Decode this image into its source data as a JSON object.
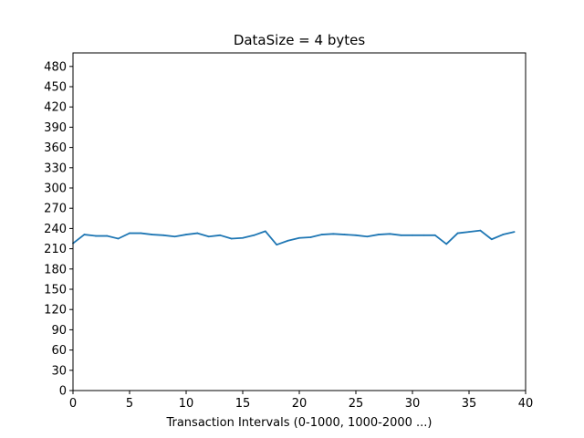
{
  "chart_data": {
    "type": "line",
    "title": "DataSize = 4 bytes",
    "xlabel": "Transaction Intervals (0-1000, 1000-2000 ...)",
    "ylabel": "",
    "xlim": [
      0,
      40
    ],
    "ylim": [
      0,
      500
    ],
    "grid": false,
    "xticks": [
      0,
      5,
      10,
      15,
      20,
      25,
      30,
      35,
      40
    ],
    "yticks": [
      0,
      30,
      60,
      90,
      120,
      150,
      180,
      210,
      240,
      270,
      300,
      330,
      360,
      390,
      420,
      450,
      480
    ],
    "series": [
      {
        "name": "",
        "color": "#1f77b4",
        "x": [
          0,
          1,
          2,
          3,
          4,
          5,
          6,
          7,
          8,
          9,
          10,
          11,
          12,
          13,
          14,
          15,
          16,
          17,
          18,
          19,
          20,
          21,
          22,
          23,
          24,
          25,
          26,
          27,
          28,
          29,
          30,
          31,
          32,
          33,
          34,
          35,
          36,
          37,
          38,
          39
        ],
        "values": [
          218,
          231,
          229,
          229,
          225,
          233,
          233,
          231,
          230,
          228,
          231,
          233,
          228,
          230,
          225,
          226,
          230,
          236,
          216,
          222,
          226,
          227,
          231,
          232,
          231,
          230,
          228,
          231,
          232,
          230,
          230,
          230,
          230,
          217,
          233,
          235,
          237,
          224,
          231,
          235
        ]
      }
    ]
  }
}
